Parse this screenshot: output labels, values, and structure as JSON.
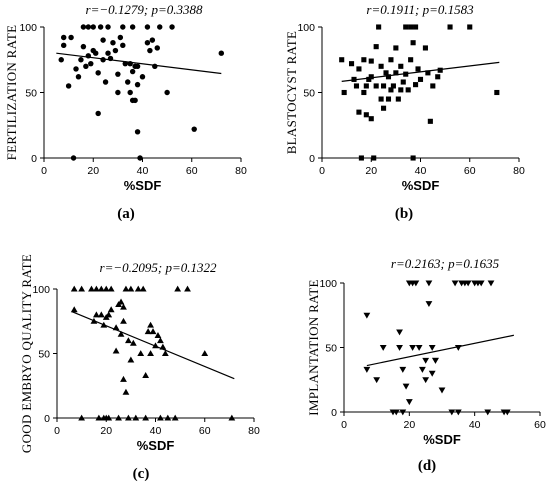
{
  "chart_data": [
    {
      "type": "scatter",
      "panel": "(a)",
      "title": "r=−0.1279; p=0.3388",
      "ylabel": "FERTILIZATION RATE",
      "xlabel": "%SDF",
      "xlim": [
        0,
        80
      ],
      "ylim": [
        0,
        100
      ],
      "xticks": [
        "0",
        "20",
        "40",
        "60",
        "80"
      ],
      "yticks": [
        "0",
        "50",
        "100"
      ],
      "marker": "circle",
      "grid": false,
      "points": [
        [
          7,
          75
        ],
        [
          8,
          86
        ],
        [
          8,
          92
        ],
        [
          10,
          55
        ],
        [
          11,
          92
        ],
        [
          12,
          0
        ],
        [
          13,
          68
        ],
        [
          14,
          62
        ],
        [
          15,
          75
        ],
        [
          16,
          100
        ],
        [
          16,
          85
        ],
        [
          17,
          70
        ],
        [
          18,
          100
        ],
        [
          18,
          78
        ],
        [
          19,
          72
        ],
        [
          20,
          100
        ],
        [
          20,
          82
        ],
        [
          21,
          80
        ],
        [
          22,
          34
        ],
        [
          22,
          65
        ],
        [
          23,
          100
        ],
        [
          24,
          90
        ],
        [
          24,
          75
        ],
        [
          25,
          58
        ],
        [
          26,
          100
        ],
        [
          26,
          80
        ],
        [
          27,
          76
        ],
        [
          28,
          88
        ],
        [
          29,
          82
        ],
        [
          30,
          64
        ],
        [
          30,
          50
        ],
        [
          31,
          92
        ],
        [
          32,
          100
        ],
        [
          32,
          86
        ],
        [
          33,
          72
        ],
        [
          34,
          58
        ],
        [
          35,
          72
        ],
        [
          35,
          50
        ],
        [
          36,
          100
        ],
        [
          36,
          44
        ],
        [
          36,
          66
        ],
        [
          37,
          70
        ],
        [
          37,
          44
        ],
        [
          38,
          20
        ],
        [
          38,
          56
        ],
        [
          38,
          70
        ],
        [
          39,
          0
        ],
        [
          40,
          62
        ],
        [
          42,
          100
        ],
        [
          42,
          88
        ],
        [
          43,
          82
        ],
        [
          44,
          90
        ],
        [
          45,
          70
        ],
        [
          46,
          84
        ],
        [
          47,
          100
        ],
        [
          50,
          50
        ],
        [
          52,
          100
        ],
        [
          61,
          22
        ],
        [
          72,
          80
        ]
      ],
      "fit": [
        [
          5,
          80
        ],
        [
          72,
          64.5
        ]
      ]
    },
    {
      "type": "scatter",
      "panel": "(b)",
      "title": "r=0.1911; p=0.1583",
      "ylabel": "BLASTOCYST RATE",
      "xlabel": "%SDF",
      "xlim": [
        0,
        80
      ],
      "ylim": [
        0,
        100
      ],
      "xticks": [
        "0",
        "20",
        "40",
        "60",
        "80"
      ],
      "yticks": [
        "0",
        "50",
        "100"
      ],
      "marker": "square",
      "grid": false,
      "points": [
        [
          8,
          75
        ],
        [
          9,
          50
        ],
        [
          12,
          72
        ],
        [
          13,
          60
        ],
        [
          14,
          55
        ],
        [
          15,
          35
        ],
        [
          15,
          68
        ],
        [
          16,
          0
        ],
        [
          17,
          50
        ],
        [
          17,
          75
        ],
        [
          18,
          55
        ],
        [
          18,
          33
        ],
        [
          19,
          60
        ],
        [
          20,
          74
        ],
        [
          20,
          30
        ],
        [
          20,
          62
        ],
        [
          21,
          0
        ],
        [
          22,
          85
        ],
        [
          22,
          55
        ],
        [
          23,
          100
        ],
        [
          24,
          70
        ],
        [
          24,
          45
        ],
        [
          25,
          55
        ],
        [
          25,
          38
        ],
        [
          26,
          65
        ],
        [
          27,
          45
        ],
        [
          27,
          62
        ],
        [
          28,
          52
        ],
        [
          28,
          75
        ],
        [
          29,
          55
        ],
        [
          30,
          84
        ],
        [
          30,
          65
        ],
        [
          31,
          45
        ],
        [
          32,
          52
        ],
        [
          32,
          70
        ],
        [
          33,
          58
        ],
        [
          34,
          100
        ],
        [
          34,
          64
        ],
        [
          35,
          52
        ],
        [
          36,
          100
        ],
        [
          36,
          75
        ],
        [
          37,
          88
        ],
        [
          37,
          0
        ],
        [
          38,
          100
        ],
        [
          38,
          56
        ],
        [
          39,
          68
        ],
        [
          40,
          60
        ],
        [
          42,
          84
        ],
        [
          43,
          65
        ],
        [
          44,
          28
        ],
        [
          45,
          55
        ],
        [
          47,
          62
        ],
        [
          48,
          67
        ],
        [
          52,
          100
        ],
        [
          60,
          100
        ],
        [
          71,
          50
        ]
      ],
      "fit": [
        [
          8,
          58.5
        ],
        [
          72,
          73
        ]
      ]
    },
    {
      "type": "scatter",
      "panel": "(c)",
      "title": "r=−0.2095; p=0.1322",
      "ylabel": "GOOD EMBRYO QUALITY RATE",
      "xlabel": "%SDF",
      "xlim": [
        0,
        80
      ],
      "ylim": [
        0,
        100
      ],
      "xticks": [
        "0",
        "20",
        "40",
        "60",
        "80"
      ],
      "yticks": [
        "0",
        "50",
        "100"
      ],
      "marker": "triangle-up",
      "grid": false,
      "points": [
        [
          7,
          84
        ],
        [
          7,
          100
        ],
        [
          10,
          100
        ],
        [
          10,
          0
        ],
        [
          14,
          100
        ],
        [
          15,
          75
        ],
        [
          16,
          100
        ],
        [
          16,
          80
        ],
        [
          17,
          0
        ],
        [
          18,
          100
        ],
        [
          18,
          80
        ],
        [
          19,
          72
        ],
        [
          19,
          0
        ],
        [
          20,
          100
        ],
        [
          20,
          78
        ],
        [
          20,
          0
        ],
        [
          21,
          80
        ],
        [
          21,
          0
        ],
        [
          22,
          100
        ],
        [
          22,
          84
        ],
        [
          24,
          70
        ],
        [
          24,
          52
        ],
        [
          25,
          88
        ],
        [
          25,
          0
        ],
        [
          26,
          90
        ],
        [
          26,
          65
        ],
        [
          27,
          30
        ],
        [
          27,
          86
        ],
        [
          27,
          75
        ],
        [
          28,
          20
        ],
        [
          28,
          100
        ],
        [
          29,
          60
        ],
        [
          29,
          0
        ],
        [
          30,
          100
        ],
        [
          30,
          45
        ],
        [
          31,
          58
        ],
        [
          32,
          0
        ],
        [
          33,
          100
        ],
        [
          34,
          50
        ],
        [
          35,
          100
        ],
        [
          36,
          33
        ],
        [
          36,
          0
        ],
        [
          37,
          67
        ],
        [
          38,
          50
        ],
        [
          38,
          72
        ],
        [
          39,
          67
        ],
        [
          40,
          56
        ],
        [
          41,
          64
        ],
        [
          42,
          60
        ],
        [
          42,
          0
        ],
        [
          43,
          55
        ],
        [
          44,
          50
        ],
        [
          45,
          0
        ],
        [
          48,
          0
        ],
        [
          49,
          100
        ],
        [
          53,
          100
        ],
        [
          60,
          50
        ],
        [
          71,
          0
        ]
      ],
      "fit": [
        [
          6,
          82.5
        ],
        [
          72,
          30.5
        ]
      ]
    },
    {
      "type": "scatter",
      "panel": "(d)",
      "title": "r=0.2163; p=0.1635",
      "ylabel": "IMPLANTATION RATE",
      "xlabel": "%SDF",
      "xlim": [
        0,
        60
      ],
      "ylim": [
        0,
        100
      ],
      "xticks": [
        "0",
        "20",
        "40",
        "60"
      ],
      "yticks": [
        "0",
        "50",
        "100"
      ],
      "marker": "triangle-down",
      "grid": false,
      "points": [
        [
          7,
          75
        ],
        [
          7,
          33
        ],
        [
          10,
          25
        ],
        [
          12,
          50
        ],
        [
          15,
          0
        ],
        [
          16,
          0
        ],
        [
          17,
          50
        ],
        [
          17,
          62
        ],
        [
          18,
          33
        ],
        [
          18,
          0
        ],
        [
          19,
          20
        ],
        [
          20,
          100
        ],
        [
          20,
          8
        ],
        [
          21,
          100
        ],
        [
          21,
          50
        ],
        [
          22,
          100
        ],
        [
          23,
          50
        ],
        [
          24,
          33
        ],
        [
          25,
          40
        ],
        [
          25,
          25
        ],
        [
          26,
          100
        ],
        [
          26,
          84
        ],
        [
          27,
          30
        ],
        [
          27,
          50
        ],
        [
          28,
          40
        ],
        [
          28,
          40
        ],
        [
          30,
          17
        ],
        [
          33,
          0
        ],
        [
          34,
          100
        ],
        [
          35,
          0
        ],
        [
          35,
          50
        ],
        [
          36,
          100
        ],
        [
          37,
          100
        ],
        [
          38,
          100
        ],
        [
          40,
          100
        ],
        [
          41,
          100
        ],
        [
          42,
          100
        ],
        [
          44,
          0
        ],
        [
          45,
          100
        ],
        [
          49,
          0
        ],
        [
          50,
          0
        ]
      ],
      "fit": [
        [
          7,
          36
        ],
        [
          52,
          59.5
        ]
      ]
    }
  ]
}
